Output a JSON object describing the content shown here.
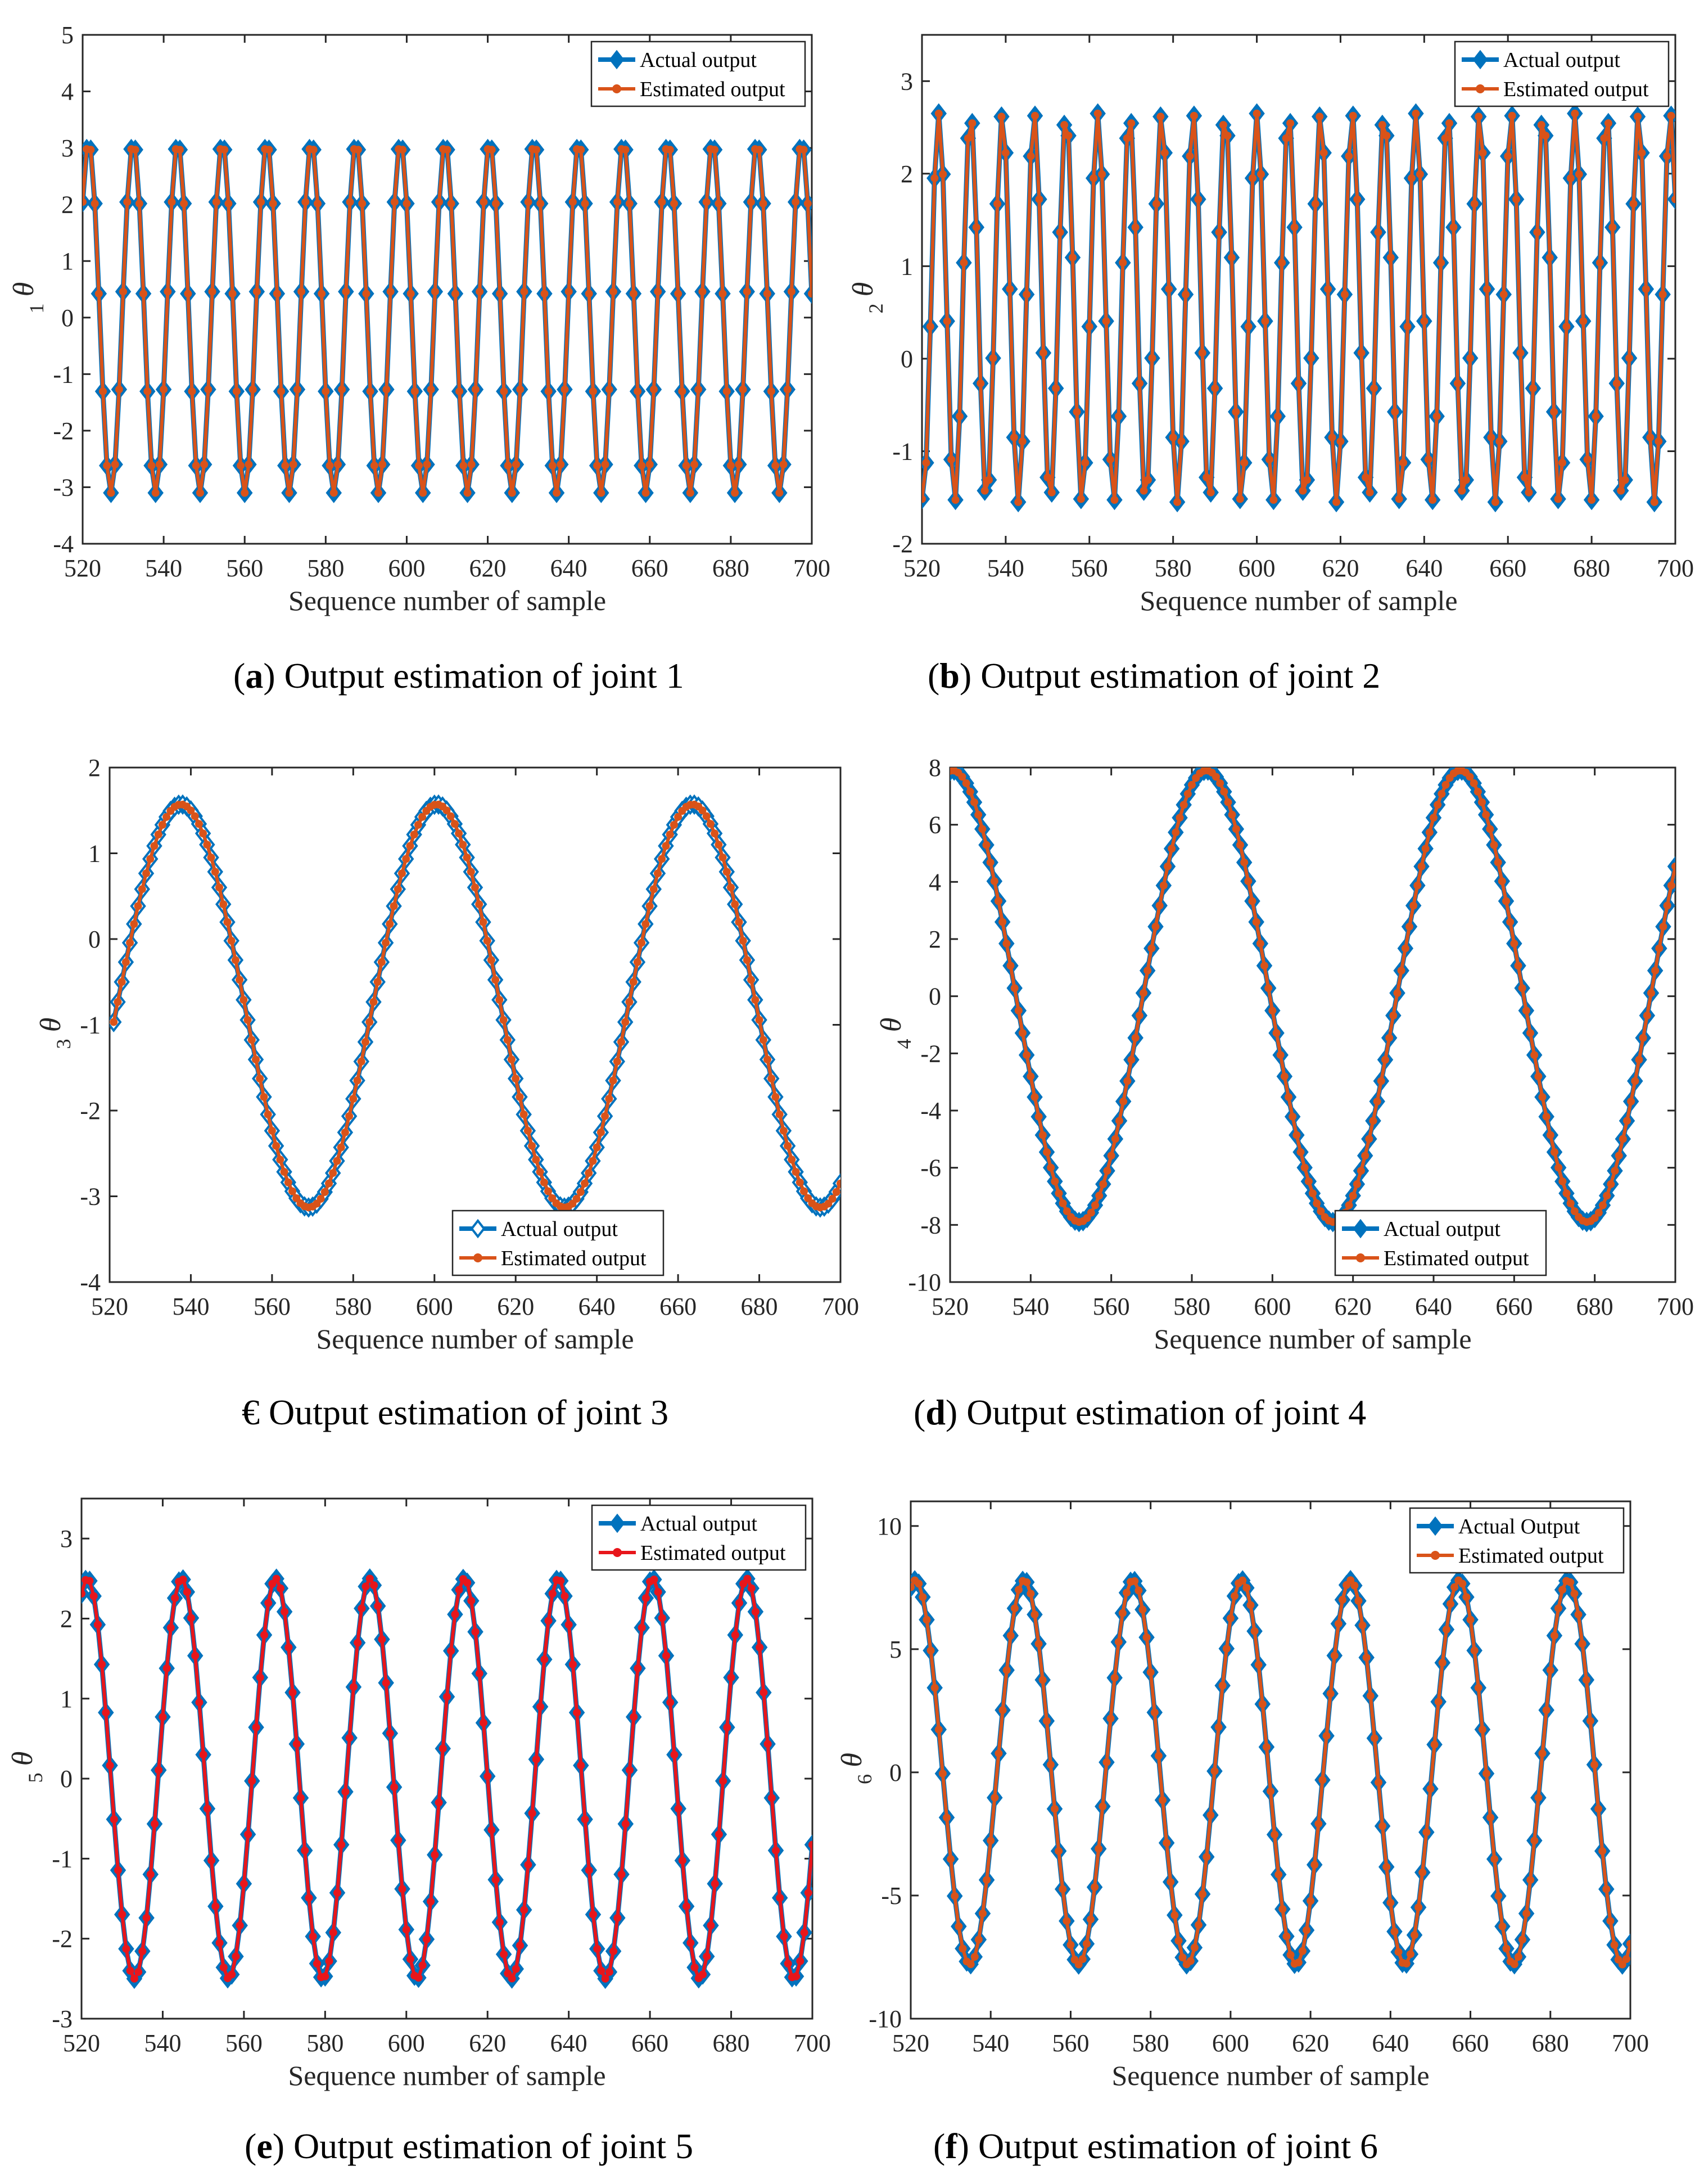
{
  "figure": {
    "captions": [
      {
        "letter": "a",
        "prefix": "(",
        "suffix": ") ",
        "text": "Output estimation of joint 1"
      },
      {
        "letter": "b",
        "prefix": "(",
        "suffix": ") ",
        "text": "Output estimation of joint 2"
      },
      {
        "letter": "",
        "prefix": "",
        "suffix": "",
        "text": "€ Output estimation of joint 3"
      },
      {
        "letter": "d",
        "prefix": "(",
        "suffix": ") ",
        "text": "Output estimation of joint 4"
      },
      {
        "letter": "e",
        "prefix": "(",
        "suffix": ") ",
        "text": "Output estimation of joint 5"
      },
      {
        "letter": "f",
        "prefix": "(",
        "suffix": ") ",
        "text": "Output estimation of joint 6"
      }
    ],
    "colors": {
      "actual": "#0072BD",
      "estimated": "#D95319",
      "estimated_red": "#E8161B"
    }
  },
  "chart_data": [
    {
      "type": "line",
      "id": "joint-1",
      "xlabel": "Sequence number of sample",
      "ylabel": "θ",
      "ylabel_sub": "1",
      "xlim": [
        520,
        700
      ],
      "ylim": [
        -4,
        5
      ],
      "xticks": [
        520,
        540,
        560,
        580,
        600,
        620,
        640,
        660,
        680,
        700
      ],
      "yticks": [
        -4,
        -3,
        -2,
        -1,
        0,
        1,
        2,
        3,
        4,
        5
      ],
      "legend": {
        "position": "top-right",
        "entries": [
          "Actual output",
          "Estimated output"
        ]
      },
      "series": [
        {
          "name": "Actual output",
          "color": "#0072BD",
          "marker": "diamond",
          "signal": {
            "amplitude": 3.1,
            "period": 11,
            "offset": 0,
            "phase_at_start": 0.72,
            "x_start": 520,
            "x_end": 700,
            "step": 1
          }
        },
        {
          "name": "Estimated output",
          "color": "#D95319",
          "marker": "dot",
          "signal": {
            "amplitude": 3.1,
            "period": 11,
            "offset": 0,
            "phase_at_start": 0.72,
            "x_start": 520,
            "x_end": 700,
            "step": 1
          }
        }
      ]
    },
    {
      "type": "line",
      "id": "joint-2",
      "xlabel": "Sequence number of sample",
      "ylabel": "θ",
      "ylabel_sub": "2",
      "xlim": [
        520,
        700
      ],
      "ylim": [
        -2,
        3.5
      ],
      "xticks": [
        520,
        540,
        560,
        580,
        600,
        620,
        640,
        660,
        680,
        700
      ],
      "yticks": [
        -2,
        -1,
        0,
        1,
        2,
        3
      ],
      "legend": {
        "position": "top-right",
        "entries": [
          "Actual output",
          "Estimated output"
        ]
      },
      "series": [
        {
          "name": "Actual output",
          "color": "#0072BD",
          "marker": "diamond",
          "signal": {
            "amplitude": 2.1,
            "period": 7.6,
            "offset": 0.55,
            "phase_at_start": -1.75,
            "x_start": 520,
            "x_end": 700,
            "step": 1
          }
        },
        {
          "name": "Estimated output",
          "color": "#D95319",
          "marker": "dot",
          "signal": {
            "amplitude": 2.1,
            "period": 7.6,
            "offset": 0.55,
            "phase_at_start": -1.75,
            "x_start": 520,
            "x_end": 700,
            "step": 1
          }
        }
      ]
    },
    {
      "type": "line",
      "id": "joint-3",
      "xlabel": "Sequence number of sample",
      "ylabel": "θ",
      "ylabel_sub": "3",
      "xlim": [
        520,
        700
      ],
      "ylim": [
        -4,
        2
      ],
      "xticks": [
        520,
        540,
        560,
        580,
        600,
        620,
        640,
        660,
        680,
        700
      ],
      "yticks": [
        -4,
        -3,
        -2,
        -1,
        0,
        1,
        2
      ],
      "legend": {
        "position": "bottom-center",
        "entries": [
          "Actual output",
          "Estimated output"
        ]
      },
      "series": [
        {
          "name": "Actual output",
          "color": "#0072BD",
          "marker": "open-diamond",
          "signal": {
            "amplitude": 2.35,
            "period": 63,
            "offset": -0.78,
            "phase_at_start": -0.08,
            "x_start": 521,
            "x_end": 700,
            "step": 1
          }
        },
        {
          "name": "Estimated output",
          "color": "#D95319",
          "marker": "dot",
          "signal": {
            "amplitude": 2.35,
            "period": 63,
            "offset": -0.78,
            "phase_at_start": -0.08,
            "x_start": 521,
            "x_end": 700,
            "step": 1
          }
        }
      ]
    },
    {
      "type": "line",
      "id": "joint-4",
      "xlabel": "Sequence number of sample",
      "ylabel": "θ",
      "ylabel_sub": "4",
      "xlim": [
        520,
        700
      ],
      "ylim": [
        -10,
        8
      ],
      "xticks": [
        520,
        540,
        560,
        580,
        600,
        620,
        640,
        660,
        680,
        700
      ],
      "yticks": [
        -10,
        -8,
        -6,
        -4,
        -2,
        0,
        2,
        4,
        6,
        8
      ],
      "legend": {
        "position": "bottom-center",
        "entries": [
          "Actual output",
          "Estimated output"
        ]
      },
      "series": [
        {
          "name": "Actual output",
          "color": "#0072BD",
          "marker": "diamond",
          "signal": {
            "amplitude": 7.9,
            "period": 63,
            "offset": 0,
            "phase_at_start": 1.51,
            "x_start": 520,
            "x_end": 700,
            "step": 1
          }
        },
        {
          "name": "Estimated output",
          "color": "#D95319",
          "marker": "dot",
          "signal": {
            "amplitude": 7.9,
            "period": 63,
            "offset": 0,
            "phase_at_start": 1.51,
            "x_start": 520,
            "x_end": 700,
            "step": 1
          }
        }
      ]
    },
    {
      "type": "line",
      "id": "joint-5",
      "xlabel": "Sequence number of sample",
      "ylabel": "θ",
      "ylabel_sub": "5",
      "xlim": [
        520,
        700
      ],
      "ylim": [
        -3,
        3.5
      ],
      "xticks": [
        520,
        540,
        560,
        580,
        600,
        620,
        640,
        660,
        680,
        700
      ],
      "yticks": [
        -3,
        -2,
        -1,
        0,
        1,
        2,
        3
      ],
      "legend": {
        "position": "top-right",
        "entries": [
          "Actual output",
          "Estimated output"
        ]
      },
      "series": [
        {
          "name": "Actual output",
          "color": "#0072BD",
          "marker": "diamond",
          "signal": {
            "amplitude": 2.5,
            "period": 23.2,
            "offset": 0,
            "phase_at_start": 1.18,
            "x_start": 520,
            "x_end": 700,
            "step": 1
          }
        },
        {
          "name": "Estimated output",
          "color": "#E8161B",
          "marker": "dot",
          "signal": {
            "amplitude": 2.5,
            "period": 23.2,
            "offset": 0,
            "phase_at_start": 1.18,
            "x_start": 520,
            "x_end": 700,
            "step": 1
          }
        }
      ]
    },
    {
      "type": "line",
      "id": "joint-6",
      "xlabel": "Sequence number of sample",
      "ylabel": "θ",
      "ylabel_sub": "6",
      "xlim": [
        520,
        700
      ],
      "ylim": [
        -10,
        11
      ],
      "xticks": [
        520,
        540,
        560,
        580,
        600,
        620,
        640,
        660,
        680,
        700
      ],
      "yticks": [
        -10,
        -5,
        0,
        5,
        10
      ],
      "legend": {
        "position": "top-right",
        "entries": [
          "Actual Output",
          "Estimated output"
        ]
      },
      "series": [
        {
          "name": "Actual Output",
          "color": "#0072BD",
          "marker": "diamond",
          "signal": {
            "amplitude": 7.8,
            "period": 27.2,
            "offset": 0,
            "phase_at_start": 1.3,
            "x_start": 520,
            "x_end": 700,
            "step": 1
          }
        },
        {
          "name": "Estimated output",
          "color": "#D95319",
          "marker": "dot",
          "signal": {
            "amplitude": 7.8,
            "period": 27.2,
            "offset": 0,
            "phase_at_start": 1.3,
            "x_start": 520,
            "x_end": 700,
            "step": 1
          }
        }
      ]
    }
  ]
}
